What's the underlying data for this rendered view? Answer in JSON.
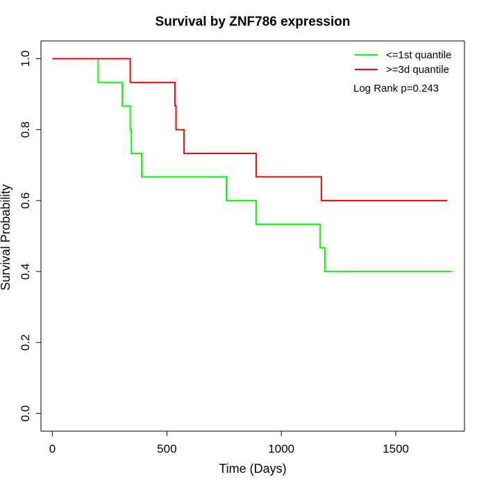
{
  "chart_data": {
    "type": "line",
    "title": "Survival by ZNF786 expression",
    "xlabel": "Time (Days)",
    "ylabel": "Survival Probability",
    "xlim": [
      -50,
      1800
    ],
    "ylim": [
      -0.05,
      1.05
    ],
    "x_ticks": [
      0,
      500,
      1000,
      1500
    ],
    "x_tick_labels": [
      "0",
      "500",
      "1000",
      "1500"
    ],
    "y_ticks": [
      0.0,
      0.2,
      0.4,
      0.6,
      0.8,
      1.0
    ],
    "y_tick_labels": [
      "0.0",
      "0.2",
      "0.4",
      "0.6",
      "0.8",
      "1.0"
    ],
    "grid": false,
    "legend_position": "top-right",
    "annotation": "Log Rank p=0.243",
    "series": [
      {
        "name": "<=1st quantile",
        "color": "#00ff00",
        "step": true,
        "x": [
          0,
          200,
          305,
          340,
          345,
          390,
          760,
          890,
          1170,
          1190,
          1745
        ],
        "y": [
          1.0,
          0.933,
          0.867,
          0.8,
          0.733,
          0.667,
          0.6,
          0.533,
          0.467,
          0.4,
          0.4
        ]
      },
      {
        "name": ">=3d quantile",
        "color": "#ff0000",
        "step": true,
        "x": [
          0,
          340,
          535,
          540,
          575,
          890,
          1175,
          1725
        ],
        "y": [
          1.0,
          0.933,
          0.867,
          0.8,
          0.733,
          0.667,
          0.6,
          0.6
        ]
      }
    ]
  }
}
